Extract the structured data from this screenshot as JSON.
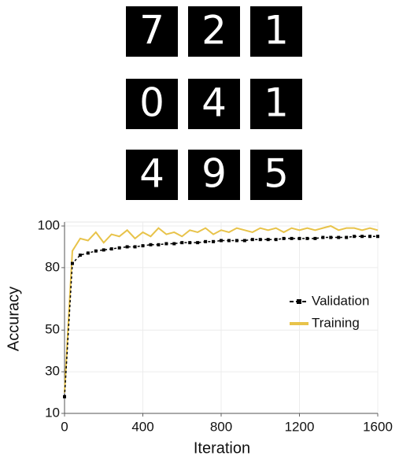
{
  "digit_grid": [
    "7",
    "2",
    "1",
    "0",
    "4",
    "1",
    "4",
    "9",
    "5"
  ],
  "chart_data": {
    "type": "line",
    "xlabel": "Iteration",
    "ylabel": "Accuracy",
    "x": [
      0,
      40,
      80,
      120,
      160,
      200,
      240,
      280,
      320,
      360,
      400,
      440,
      480,
      520,
      560,
      600,
      640,
      680,
      720,
      760,
      800,
      840,
      880,
      920,
      960,
      1000,
      1040,
      1080,
      1120,
      1160,
      1200,
      1240,
      1280,
      1320,
      1360,
      1400,
      1440,
      1480,
      1520,
      1560,
      1600
    ],
    "series": [
      {
        "name": "Validation",
        "color": "#000000",
        "style": "dotted-square",
        "values": [
          18,
          82,
          86,
          87,
          88,
          88.5,
          89,
          89.5,
          90,
          90,
          90.5,
          91,
          91,
          91.5,
          91.5,
          92,
          92,
          92,
          92.5,
          92.5,
          93,
          93,
          93,
          93,
          93.5,
          93.5,
          93.5,
          93.5,
          94,
          94,
          94,
          94,
          94,
          94.5,
          94.5,
          94.5,
          94.5,
          95,
          95,
          95,
          95
        ]
      },
      {
        "name": "Training",
        "color": "#e8c34a",
        "style": "solid",
        "values": [
          20,
          88,
          94,
          93,
          97,
          92,
          96,
          95,
          98,
          94,
          97,
          95,
          99,
          96,
          97,
          95,
          98,
          97,
          99,
          96,
          98,
          97,
          99,
          98,
          97,
          99,
          98,
          99,
          97,
          99,
          98,
          99,
          98,
          99,
          100,
          98,
          99,
          99,
          98,
          99,
          98
        ]
      }
    ],
    "xlim": [
      0,
      1600
    ],
    "xticks": [
      0,
      400,
      800,
      1200,
      1600
    ],
    "ylim": [
      10,
      100
    ],
    "yticks": [
      10,
      30,
      50,
      80,
      100
    ],
    "grid": true,
    "legend": "right"
  }
}
